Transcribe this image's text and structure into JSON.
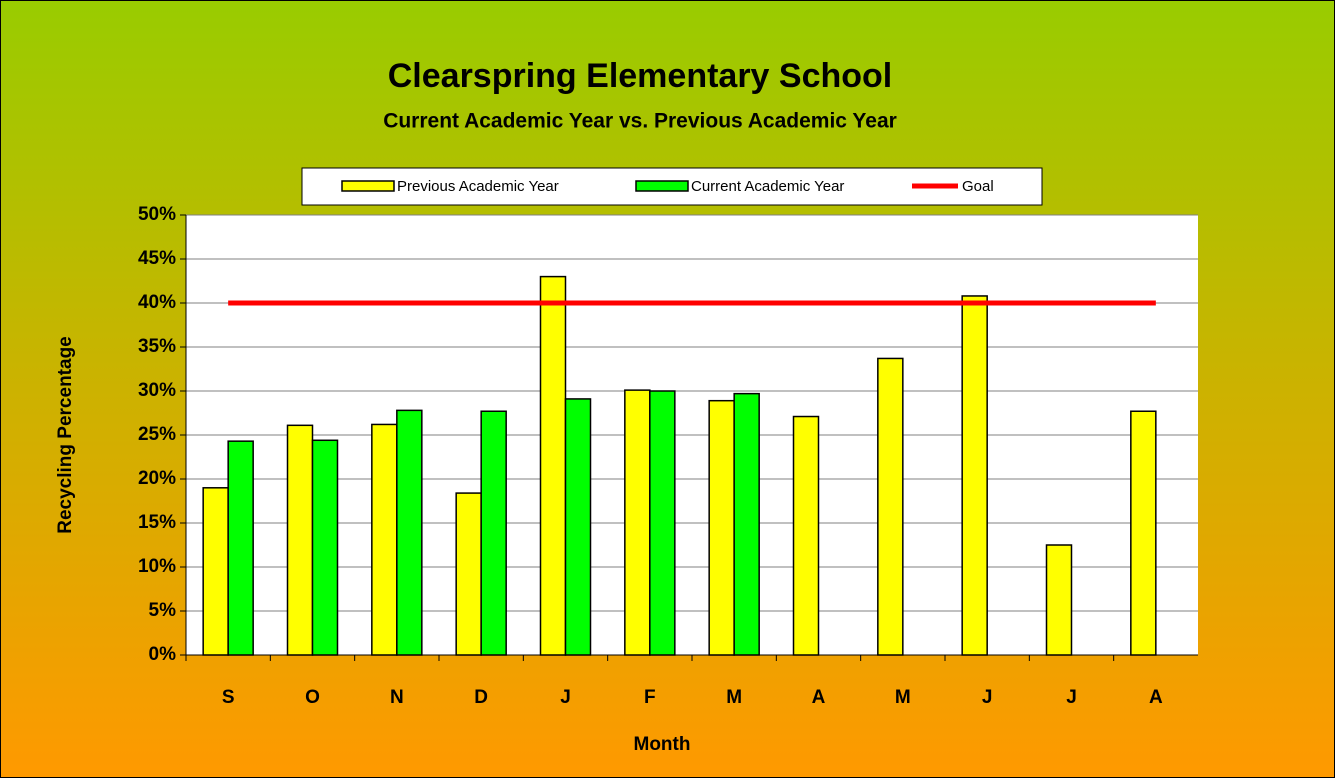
{
  "chart_data": {
    "type": "bar",
    "title": "Clearspring Elementary School",
    "subtitle": "Current Academic Year vs. Previous Academic Year",
    "y_label": "Recycling Percentage",
    "x_label": "Month",
    "categories": [
      "S",
      "O",
      "N",
      "D",
      "J",
      "F",
      "M",
      "A",
      "M",
      "J",
      "J",
      "A"
    ],
    "series": [
      {
        "name": "Previous Academic Year",
        "color": "#ffff00",
        "type": "bar",
        "values": [
          19,
          26.1,
          26.2,
          18.4,
          43,
          30.1,
          28.9,
          27.1,
          33.7,
          40.8,
          12.5,
          27.7
        ]
      },
      {
        "name": "Current Academic Year",
        "color": "#00ff00",
        "type": "bar",
        "values": [
          24.3,
          24.4,
          27.8,
          27.7,
          29.1,
          30,
          29.7,
          null,
          null,
          null,
          null,
          null
        ]
      },
      {
        "name": "Goal",
        "color": "#ff0000",
        "type": "line",
        "values": [
          40,
          40,
          40,
          40,
          40,
          40,
          40,
          40,
          40,
          40,
          40,
          40
        ]
      }
    ],
    "ylim": [
      0,
      50
    ],
    "yticks": [
      {
        "value": 0,
        "label": "0%"
      },
      {
        "value": 5,
        "label": "5%"
      },
      {
        "value": 10,
        "label": "10%"
      },
      {
        "value": 15,
        "label": "15%"
      },
      {
        "value": 20,
        "label": "20%"
      },
      {
        "value": 25,
        "label": "25%"
      },
      {
        "value": 30,
        "label": "30%"
      },
      {
        "value": 35,
        "label": "35%"
      },
      {
        "value": 40,
        "label": "40%"
      },
      {
        "value": 45,
        "label": "45%"
      },
      {
        "value": 50,
        "label": "50%"
      }
    ],
    "grid": true,
    "legend": "top"
  }
}
